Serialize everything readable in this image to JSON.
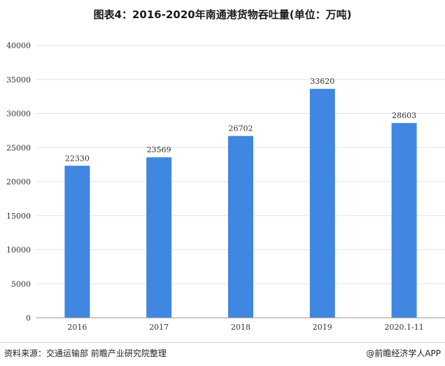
{
  "title": "图表4：2016-2020年南通港货物吞吐量(单位：万吨)",
  "source": "资料来源：交通运输部 前瞻产业研究院整理",
  "brand": "@前瞻经济学人APP",
  "colors": {
    "bar": "#3f87e0",
    "grid": "#e3e3e3",
    "axis": "#999999"
  },
  "chart_data": {
    "type": "bar",
    "categories": [
      "2016",
      "2017",
      "2018",
      "2019",
      "2020.1-11"
    ],
    "values": [
      22330,
      23569,
      26702,
      33620,
      28603
    ],
    "data_labels": [
      "22330",
      "23569",
      "26702",
      "33620",
      "28603"
    ],
    "y_ticks": [
      "0",
      "5000",
      "10000",
      "15000",
      "20000",
      "25000",
      "30000",
      "35000",
      "40000"
    ],
    "ylim": [
      0,
      40000
    ],
    "grid": true,
    "legend": "none"
  }
}
